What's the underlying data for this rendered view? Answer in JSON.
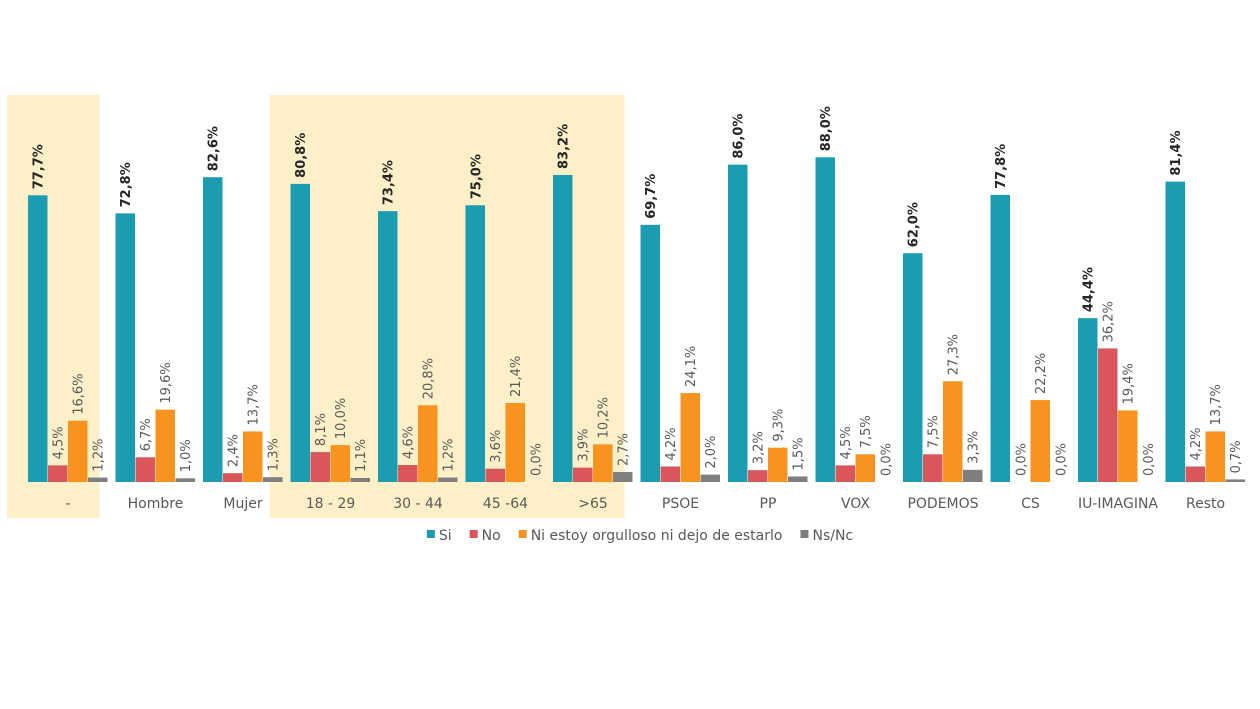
{
  "chart_data": {
    "type": "bar",
    "categories": [
      "-",
      "Hombre",
      "Mujer",
      "18 - 29",
      "30 - 44",
      "45 -64",
      ">65",
      "PSOE",
      "PP",
      "VOX",
      "PODEMOS",
      "CS",
      "IU-IMAGINA",
      "Resto"
    ],
    "series": [
      {
        "name": "Si",
        "color": "#1b9cb1",
        "values": [
          77.7,
          72.8,
          82.6,
          80.8,
          73.4,
          75.0,
          83.2,
          69.7,
          86.0,
          88.0,
          62.0,
          77.8,
          44.4,
          81.4
        ],
        "value_labels": [
          "77,7%",
          "72,8%",
          "82,6%",
          "80,8%",
          "73,4%",
          "75,0%",
          "83,2%",
          "69,7%",
          "86,0%",
          "88,0%",
          "62,0%",
          "77,8%",
          "44,4%",
          "81,4%"
        ]
      },
      {
        "name": "No",
        "color": "#d9565a",
        "values": [
          4.5,
          6.7,
          2.4,
          8.1,
          4.6,
          3.6,
          3.9,
          4.2,
          3.2,
          4.5,
          7.5,
          0.0,
          36.2,
          4.2
        ],
        "value_labels": [
          "4,5%",
          "6,7%",
          "2,4%",
          "8,1%",
          "4,6%",
          "3,6%",
          "3,9%",
          "4,2%",
          "3,2%",
          "4,5%",
          "7,5%",
          "0,0%",
          "36,2%",
          "4,2%"
        ]
      },
      {
        "name": "Ni estoy orgulloso ni dejo de estarlo",
        "color": "#f7931e",
        "values": [
          16.6,
          19.6,
          13.7,
          10.0,
          20.8,
          21.4,
          10.2,
          24.1,
          9.3,
          7.5,
          27.3,
          22.2,
          19.4,
          13.7
        ],
        "value_labels": [
          "16,6%",
          "19,6%",
          "13,7%",
          "10,0%",
          "20,8%",
          "21,4%",
          "10,2%",
          "24,1%",
          "9,3%",
          "7,5%",
          "27,3%",
          "22,2%",
          "19,4%",
          "13,7%"
        ]
      },
      {
        "name": "Ns/Nc",
        "color": "#7f7f7f",
        "values": [
          1.2,
          1.0,
          1.3,
          1.1,
          1.2,
          0.0,
          2.7,
          2.0,
          1.5,
          0.0,
          3.3,
          0.0,
          0.0,
          0.7
        ],
        "value_labels": [
          "1,2%",
          "1,0%",
          "1,3%",
          "1,1%",
          "1,2%",
          "0,0%",
          "2,7%",
          "2,0%",
          "1,5%",
          "0,0%",
          "3,3%",
          "0,0%",
          "0,0%",
          "0,7%"
        ]
      }
    ]
  }
}
